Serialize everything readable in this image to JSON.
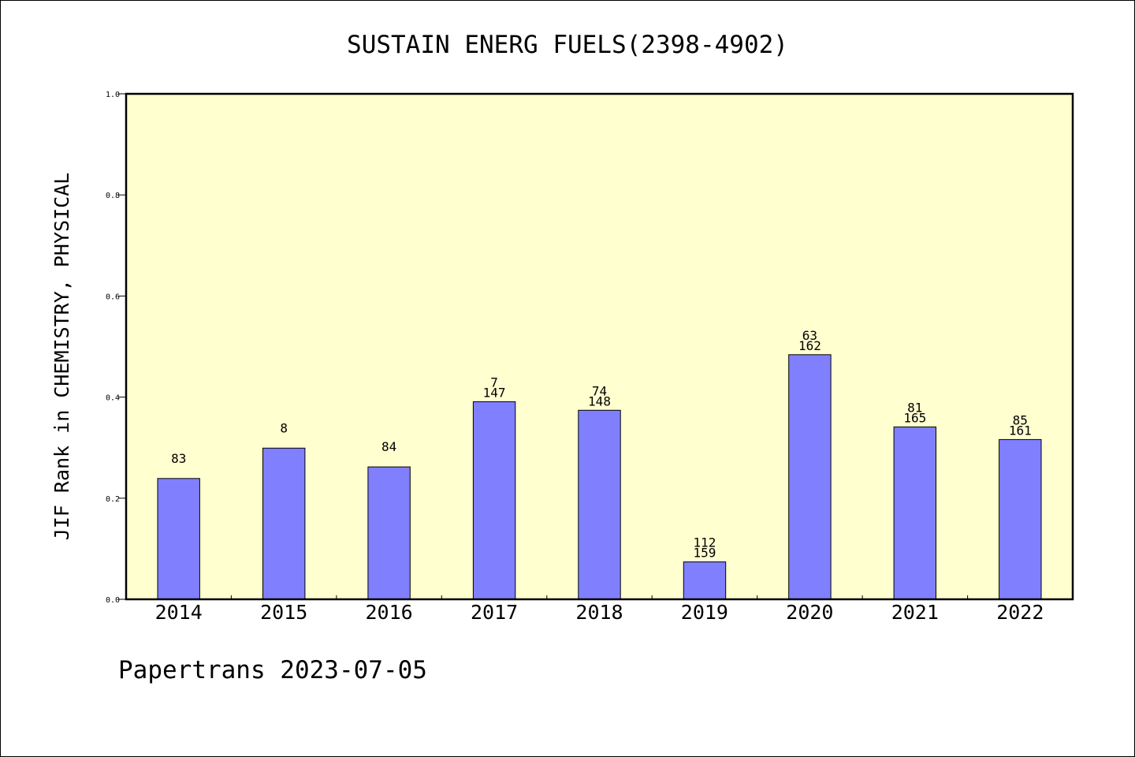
{
  "chart_data": {
    "type": "bar",
    "title": "SUSTAIN ENERG FUELS(2398-4902)",
    "ylabel": "JIF Rank in CHEMISTRY, PHYSICAL",
    "xlabel": "",
    "ylim": [
      0,
      1.0
    ],
    "yticks": [
      "0.0",
      "0.2",
      "0.4",
      "0.6",
      "0.8",
      "1.0"
    ],
    "grid": false,
    "categories": [
      "2014",
      "2015",
      "2016",
      "2017",
      "2018",
      "2019",
      "2020",
      "2021",
      "2022"
    ],
    "values": [
      0.239,
      0.299,
      0.262,
      0.391,
      0.374,
      0.074,
      0.484,
      0.341,
      0.316
    ],
    "rank_labels": [
      "83",
      "8",
      "84",
      "7",
      "74",
      "112",
      "63",
      "81",
      "85"
    ],
    "total_labels": [
      "",
      "",
      "",
      "147",
      "148",
      "159",
      "162",
      "165",
      "161"
    ],
    "colors": {
      "plot_bg": "#ffffd0",
      "bar_fill": "#8080ff",
      "bar_stroke": "#000000"
    }
  },
  "footer": {
    "text": "Papertrans 2023-07-05"
  }
}
